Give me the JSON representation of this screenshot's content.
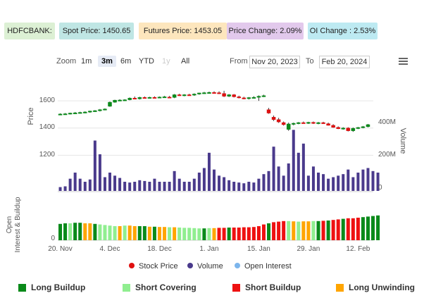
{
  "header": {
    "badges": [
      {
        "text": "HDFCBANK:",
        "color": "#dcf0d4"
      },
      {
        "text": "Spot Price: 1450.65",
        "color": "#bfe6e4"
      },
      {
        "text": "Futures Price: 1453.05",
        "color": "#fde6bd"
      },
      {
        "text": "Price Change: 2.09%",
        "color": "#e2c9ec"
      },
      {
        "text": "OI Change : 2.53%",
        "color": "#bdeaf2"
      }
    ]
  },
  "toolbar": {
    "zoom_label": "Zoom",
    "zoom_buttons": [
      "1m",
      "3m",
      "6m",
      "YTD",
      "1y",
      "All"
    ],
    "zoom_active": "3m",
    "zoom_disabled": "1y",
    "from_label": "From",
    "from_value": "Nov 20, 2023",
    "to_label": "To",
    "to_value": "Feb 20, 2024"
  },
  "chart_data": {
    "type": "candlestick",
    "price_axis": {
      "label": "Price",
      "ticks": [
        1200,
        1400,
        1600
      ],
      "range": [
        1150,
        1720
      ]
    },
    "volume_axis": {
      "label": "Volume",
      "ticks": [
        "0",
        "200M",
        "400M"
      ],
      "range_millions": [
        0,
        600
      ]
    },
    "oi_axis": {
      "label": "Open Interest & Buildup",
      "ticks": [
        0
      ]
    },
    "x_ticks": [
      "20. Nov",
      "4. Dec",
      "18. Dec",
      "1. Jan",
      "15. Jan",
      "29. Jan",
      "12. Feb"
    ],
    "x_tick_index": [
      0,
      10,
      20,
      30,
      40,
      50,
      60
    ],
    "candles": [
      {
        "o": 1500,
        "h": 1508,
        "l": 1496,
        "c": 1503,
        "up": true
      },
      {
        "o": 1503,
        "h": 1510,
        "l": 1498,
        "c": 1505,
        "up": true
      },
      {
        "o": 1505,
        "h": 1513,
        "l": 1500,
        "c": 1510,
        "up": true
      },
      {
        "o": 1510,
        "h": 1518,
        "l": 1505,
        "c": 1512,
        "up": true
      },
      {
        "o": 1512,
        "h": 1520,
        "l": 1507,
        "c": 1515,
        "up": true
      },
      {
        "o": 1515,
        "h": 1523,
        "l": 1509,
        "c": 1518,
        "up": true
      },
      {
        "o": 1518,
        "h": 1528,
        "l": 1512,
        "c": 1525,
        "up": true
      },
      {
        "o": 1525,
        "h": 1532,
        "l": 1518,
        "c": 1528,
        "up": true
      },
      {
        "o": 1528,
        "h": 1540,
        "l": 1522,
        "c": 1535,
        "up": true
      },
      {
        "o": 1535,
        "h": 1545,
        "l": 1530,
        "c": 1540,
        "up": true
      },
      {
        "o": 1560,
        "h": 1595,
        "l": 1556,
        "c": 1590,
        "up": true
      },
      {
        "o": 1590,
        "h": 1608,
        "l": 1586,
        "c": 1605,
        "up": true
      },
      {
        "o": 1605,
        "h": 1612,
        "l": 1598,
        "c": 1606,
        "up": true
      },
      {
        "o": 1604,
        "h": 1612,
        "l": 1600,
        "c": 1608,
        "up": true
      },
      {
        "o": 1608,
        "h": 1625,
        "l": 1604,
        "c": 1620,
        "up": true
      },
      {
        "o": 1620,
        "h": 1632,
        "l": 1612,
        "c": 1615,
        "up": false
      },
      {
        "o": 1615,
        "h": 1630,
        "l": 1610,
        "c": 1625,
        "up": true
      },
      {
        "o": 1625,
        "h": 1632,
        "l": 1618,
        "c": 1622,
        "up": false
      },
      {
        "o": 1622,
        "h": 1630,
        "l": 1617,
        "c": 1626,
        "up": true
      },
      {
        "o": 1626,
        "h": 1633,
        "l": 1620,
        "c": 1624,
        "up": false
      },
      {
        "o": 1624,
        "h": 1632,
        "l": 1619,
        "c": 1628,
        "up": true
      },
      {
        "o": 1628,
        "h": 1636,
        "l": 1622,
        "c": 1630,
        "up": true
      },
      {
        "o": 1628,
        "h": 1636,
        "l": 1622,
        "c": 1625,
        "up": false
      },
      {
        "o": 1625,
        "h": 1650,
        "l": 1620,
        "c": 1645,
        "up": true
      },
      {
        "o": 1645,
        "h": 1652,
        "l": 1636,
        "c": 1640,
        "up": false
      },
      {
        "o": 1640,
        "h": 1649,
        "l": 1634,
        "c": 1645,
        "up": true
      },
      {
        "o": 1645,
        "h": 1652,
        "l": 1638,
        "c": 1642,
        "up": false
      },
      {
        "o": 1642,
        "h": 1655,
        "l": 1637,
        "c": 1650,
        "up": true
      },
      {
        "o": 1650,
        "h": 1660,
        "l": 1645,
        "c": 1658,
        "up": true
      },
      {
        "o": 1658,
        "h": 1666,
        "l": 1652,
        "c": 1660,
        "up": true
      },
      {
        "o": 1660,
        "h": 1668,
        "l": 1655,
        "c": 1662,
        "up": true
      },
      {
        "o": 1662,
        "h": 1670,
        "l": 1655,
        "c": 1660,
        "up": false
      },
      {
        "o": 1660,
        "h": 1670,
        "l": 1650,
        "c": 1654,
        "up": false
      },
      {
        "o": 1654,
        "h": 1674,
        "l": 1628,
        "c": 1634,
        "up": false
      },
      {
        "o": 1634,
        "h": 1650,
        "l": 1628,
        "c": 1645,
        "up": true
      },
      {
        "o": 1645,
        "h": 1650,
        "l": 1625,
        "c": 1630,
        "up": false
      },
      {
        "o": 1630,
        "h": 1638,
        "l": 1618,
        "c": 1622,
        "up": false
      },
      {
        "o": 1622,
        "h": 1630,
        "l": 1612,
        "c": 1618,
        "up": false
      },
      {
        "o": 1618,
        "h": 1628,
        "l": 1610,
        "c": 1624,
        "up": true
      },
      {
        "o": 1624,
        "h": 1634,
        "l": 1618,
        "c": 1626,
        "up": true
      },
      {
        "o": 1626,
        "h": 1640,
        "l": 1600,
        "c": 1634,
        "up": true
      },
      {
        "o": 1634,
        "h": 1645,
        "l": 1628,
        "c": 1638,
        "up": true
      },
      {
        "o": 1535,
        "h": 1548,
        "l": 1505,
        "c": 1510,
        "up": false
      },
      {
        "o": 1480,
        "h": 1492,
        "l": 1452,
        "c": 1462,
        "up": false
      },
      {
        "o": 1462,
        "h": 1475,
        "l": 1438,
        "c": 1445,
        "up": false
      },
      {
        "o": 1440,
        "h": 1448,
        "l": 1418,
        "c": 1425,
        "up": false
      },
      {
        "o": 1390,
        "h": 1440,
        "l": 1380,
        "c": 1430,
        "up": true
      },
      {
        "o": 1428,
        "h": 1440,
        "l": 1420,
        "c": 1435,
        "up": true
      },
      {
        "o": 1435,
        "h": 1444,
        "l": 1428,
        "c": 1440,
        "up": true
      },
      {
        "o": 1440,
        "h": 1448,
        "l": 1432,
        "c": 1436,
        "up": false
      },
      {
        "o": 1436,
        "h": 1446,
        "l": 1430,
        "c": 1442,
        "up": true
      },
      {
        "o": 1442,
        "h": 1448,
        "l": 1430,
        "c": 1434,
        "up": false
      },
      {
        "o": 1434,
        "h": 1445,
        "l": 1428,
        "c": 1440,
        "up": true
      },
      {
        "o": 1440,
        "h": 1446,
        "l": 1430,
        "c": 1432,
        "up": false
      },
      {
        "o": 1432,
        "h": 1440,
        "l": 1418,
        "c": 1420,
        "up": false
      },
      {
        "o": 1420,
        "h": 1428,
        "l": 1402,
        "c": 1405,
        "up": false
      },
      {
        "o": 1405,
        "h": 1412,
        "l": 1392,
        "c": 1395,
        "up": false
      },
      {
        "o": 1395,
        "h": 1406,
        "l": 1388,
        "c": 1400,
        "up": true
      },
      {
        "o": 1400,
        "h": 1406,
        "l": 1375,
        "c": 1380,
        "up": false
      },
      {
        "o": 1380,
        "h": 1404,
        "l": 1372,
        "c": 1398,
        "up": true
      },
      {
        "o": 1398,
        "h": 1408,
        "l": 1392,
        "c": 1404,
        "up": true
      },
      {
        "o": 1404,
        "h": 1415,
        "l": 1398,
        "c": 1410,
        "up": true
      },
      {
        "o": 1410,
        "h": 1430,
        "l": 1405,
        "c": 1425,
        "up": true
      }
    ],
    "volume_millions": [
      25,
      30,
      80,
      120,
      80,
      60,
      75,
      330,
      240,
      90,
      120,
      100,
      85,
      60,
      55,
      60,
      70,
      65,
      60,
      80,
      60,
      60,
      60,
      130,
      80,
      60,
      60,
      80,
      120,
      150,
      250,
      140,
      100,
      90,
      70,
      60,
      55,
      50,
      60,
      55,
      80,
      110,
      130,
      290,
      160,
      100,
      180,
      400,
      250,
      310,
      100,
      160,
      120,
      110,
      80,
      90,
      100,
      110,
      140,
      90,
      120,
      140,
      150,
      130,
      120
    ],
    "buildup": [
      "LB",
      "LB",
      "SC",
      "LB",
      "LB",
      "LU",
      "LU",
      "LB",
      "SC",
      "SC",
      "SC",
      "SC",
      "LU",
      "SC",
      "LU",
      "LU",
      "LB",
      "LB",
      "LU",
      "LB",
      "LU",
      "LU",
      "SC",
      "LU",
      "SC",
      "SC",
      "SC",
      "SC",
      "SC",
      "LB",
      "SC",
      "LU",
      "SB",
      "SB",
      "LB",
      "SB",
      "SB",
      "SB",
      "SB",
      "SB",
      "SB",
      "SB",
      "LB",
      "SB",
      "SB",
      "SB",
      "SC",
      "LU",
      "SC",
      "LU",
      "LU",
      "SC",
      "LB",
      "SB",
      "LB",
      "SB",
      "SB",
      "LB",
      "SB",
      "SB",
      "SB",
      "LB",
      "LB",
      "LB",
      "LB"
    ],
    "oi_level": [
      0.58,
      0.6,
      0.6,
      0.62,
      0.62,
      0.6,
      0.6,
      0.58,
      0.56,
      0.54,
      0.52,
      0.5,
      0.5,
      0.52,
      0.52,
      0.5,
      0.5,
      0.5,
      0.48,
      0.48,
      0.47,
      0.47,
      0.46,
      0.46,
      0.45,
      0.44,
      0.44,
      0.43,
      0.42,
      0.42,
      0.43,
      0.43,
      0.44,
      0.44,
      0.45,
      0.45,
      0.45,
      0.46,
      0.46,
      0.47,
      0.5,
      0.56,
      0.6,
      0.64,
      0.66,
      0.68,
      0.68,
      0.67,
      0.66,
      0.67,
      0.67,
      0.68,
      0.68,
      0.69,
      0.7,
      0.72,
      0.74,
      0.76,
      0.78,
      0.78,
      0.8,
      0.82,
      0.84,
      0.86,
      0.88
    ],
    "legend_series": [
      {
        "name": "Stock Price",
        "color": "#e01010"
      },
      {
        "name": "Volume",
        "color": "#4a3a8c"
      },
      {
        "name": "Open Interest",
        "color": "#7cb5ec"
      }
    ],
    "buildup_legend": [
      {
        "key": "LB",
        "name": "Long Buildup",
        "color": "#0a8a1a"
      },
      {
        "key": "SC",
        "name": "Short Covering",
        "color": "#90ee90"
      },
      {
        "key": "SB",
        "name": "Short Buildup",
        "color": "#ee1111"
      },
      {
        "key": "LU",
        "name": "Long Unwinding",
        "color": "#ffa500"
      }
    ],
    "colors": {
      "up": "#0a8a1a",
      "down": "#dd1111",
      "volume": "#4a3a8c",
      "grid": "#e6e6e6"
    }
  }
}
